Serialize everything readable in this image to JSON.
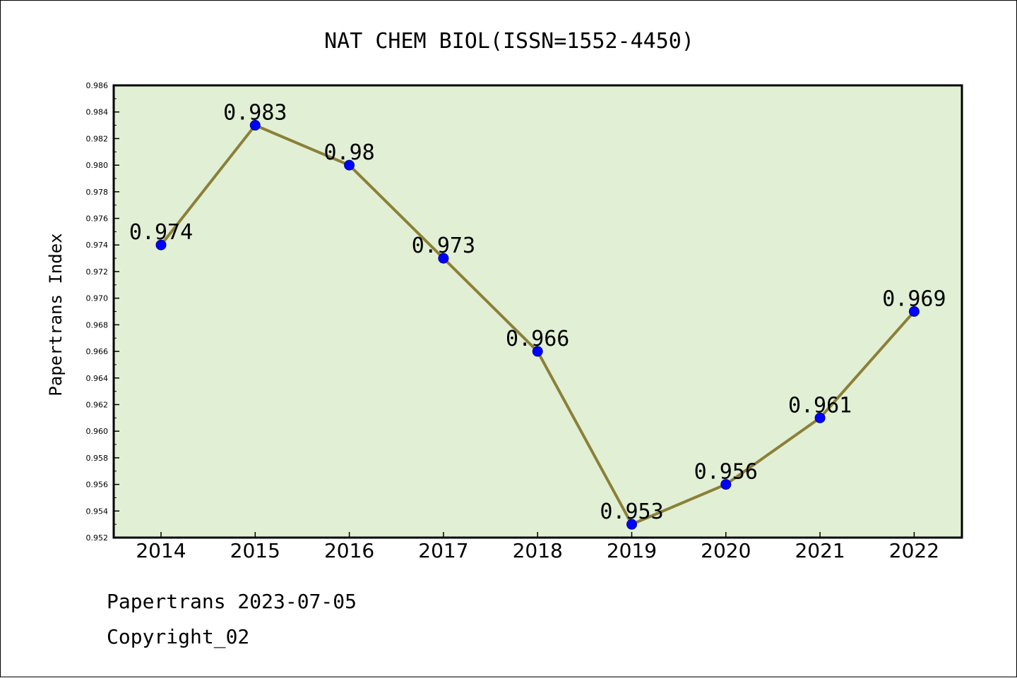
{
  "chart_data": {
    "type": "line",
    "title": "NAT CHEM BIOL(ISSN=1552-4450)",
    "xlabel": "",
    "ylabel": "Papertrans Index",
    "categories": [
      "2014",
      "2015",
      "2016",
      "2017",
      "2018",
      "2019",
      "2020",
      "2021",
      "2022"
    ],
    "series": [
      {
        "values": [
          0.974,
          0.983,
          0.98,
          0.973,
          0.966,
          0.953,
          0.956,
          0.961,
          0.969
        ],
        "data_labels": [
          "0.974",
          "0.983",
          "0.98",
          "0.973",
          "0.966",
          "0.953",
          "0.956",
          "0.961",
          "0.969"
        ]
      }
    ],
    "ylim": [
      0.952,
      0.986
    ],
    "yticks": [
      "0.952",
      "0.954",
      "0.956",
      "0.958",
      "0.960",
      "0.962",
      "0.964",
      "0.966",
      "0.968",
      "0.970",
      "0.972",
      "0.974",
      "0.976",
      "0.978",
      "0.980",
      "0.982",
      "0.984",
      "0.986"
    ],
    "grid": false,
    "legend": "none"
  },
  "colors": {
    "plot_background": "#e1efd5",
    "line": "#8b8038",
    "marker": "#0000ff",
    "marker_edge": "#00008b",
    "axes": "#000000"
  },
  "footer": {
    "line1": "Papertrans 2023-07-05",
    "line2": "Copyright_02"
  }
}
